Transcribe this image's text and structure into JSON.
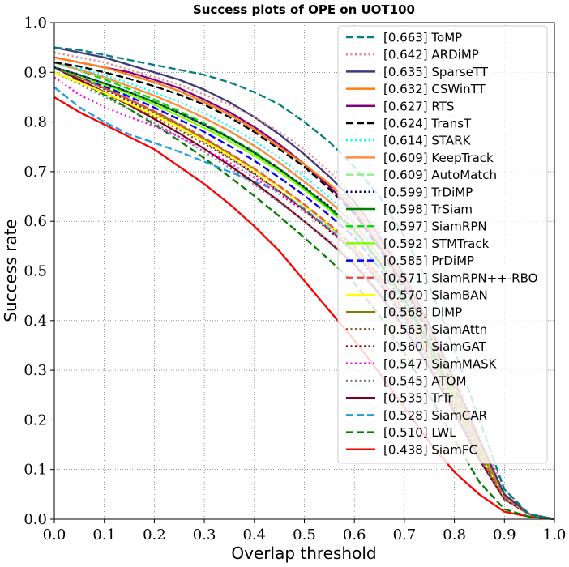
{
  "chart_data": {
    "type": "line",
    "title": "Success plots of OPE on UOT100",
    "xlabel": "Overlap threshold",
    "ylabel": "Success rate",
    "xlim": [
      0.0,
      1.0
    ],
    "ylim": [
      0.0,
      1.0
    ],
    "grid": true,
    "legend_position": "top-right",
    "xticks": [
      "0.0",
      "0.1",
      "0.2",
      "0.3",
      "0.4",
      "0.5",
      "0.6",
      "0.7",
      "0.8",
      "0.9",
      "1.0"
    ],
    "yticks": [
      "0.0",
      "0.1",
      "0.2",
      "0.3",
      "0.4",
      "0.5",
      "0.6",
      "0.7",
      "0.8",
      "0.9",
      "1.0"
    ],
    "x": [
      0.0,
      0.05,
      0.1,
      0.15,
      0.2,
      0.25,
      0.3,
      0.35,
      0.4,
      0.45,
      0.5,
      0.55,
      0.6,
      0.65,
      0.7,
      0.75,
      0.8,
      0.85,
      0.9,
      0.95,
      1.0
    ],
    "series": [
      {
        "name": "[0.663] ToMP",
        "color": "#008080",
        "dash": "dashed",
        "values": [
          0.95,
          0.945,
          0.935,
          0.925,
          0.915,
          0.905,
          0.895,
          0.88,
          0.86,
          0.835,
          0.8,
          0.76,
          0.71,
          0.65,
          0.57,
          0.47,
          0.34,
          0.2,
          0.06,
          0.01,
          0.0
        ]
      },
      {
        "name": "[0.642] ARDiMP",
        "color": "#f08080",
        "dash": "dotted",
        "values": [
          0.94,
          0.93,
          0.92,
          0.905,
          0.89,
          0.875,
          0.855,
          0.835,
          0.81,
          0.78,
          0.745,
          0.7,
          0.65,
          0.58,
          0.5,
          0.4,
          0.29,
          0.17,
          0.06,
          0.01,
          0.0
        ]
      },
      {
        "name": "[0.635] SparseTT",
        "color": "#3b3b7a",
        "dash": "solid",
        "values": [
          0.95,
          0.94,
          0.93,
          0.915,
          0.9,
          0.885,
          0.865,
          0.84,
          0.81,
          0.775,
          0.735,
          0.69,
          0.64,
          0.57,
          0.49,
          0.39,
          0.28,
          0.16,
          0.05,
          0.01,
          0.0
        ]
      },
      {
        "name": "[0.632] CSWinTT",
        "color": "#ff7f0e",
        "dash": "solid",
        "values": [
          0.93,
          0.92,
          0.91,
          0.895,
          0.88,
          0.862,
          0.84,
          0.815,
          0.785,
          0.75,
          0.715,
          0.675,
          0.63,
          0.56,
          0.48,
          0.38,
          0.27,
          0.15,
          0.05,
          0.01,
          0.0
        ]
      },
      {
        "name": "[0.627] RTS",
        "color": "#800080",
        "dash": "solid",
        "values": [
          0.93,
          0.92,
          0.91,
          0.9,
          0.885,
          0.868,
          0.845,
          0.82,
          0.79,
          0.755,
          0.715,
          0.67,
          0.62,
          0.55,
          0.47,
          0.38,
          0.27,
          0.15,
          0.05,
          0.01,
          0.0
        ]
      },
      {
        "name": "[0.624] TransT",
        "color": "#000000",
        "dash": "dashed",
        "values": [
          0.92,
          0.912,
          0.9,
          0.887,
          0.872,
          0.855,
          0.835,
          0.81,
          0.78,
          0.745,
          0.71,
          0.665,
          0.615,
          0.545,
          0.465,
          0.37,
          0.265,
          0.15,
          0.05,
          0.01,
          0.0
        ]
      },
      {
        "name": "[0.614] STARK",
        "color": "#00ffff",
        "dash": "dotted",
        "values": [
          0.92,
          0.908,
          0.894,
          0.878,
          0.86,
          0.84,
          0.818,
          0.792,
          0.762,
          0.728,
          0.69,
          0.648,
          0.6,
          0.535,
          0.46,
          0.365,
          0.26,
          0.15,
          0.05,
          0.01,
          0.0
        ]
      },
      {
        "name": "[0.609] KeepTrack",
        "color": "#ff8c42",
        "dash": "solid",
        "values": [
          0.92,
          0.905,
          0.89,
          0.872,
          0.853,
          0.832,
          0.808,
          0.782,
          0.752,
          0.718,
          0.68,
          0.64,
          0.595,
          0.53,
          0.455,
          0.36,
          0.255,
          0.145,
          0.05,
          0.01,
          0.0
        ]
      },
      {
        "name": "[0.609] AutoMatch",
        "color": "#90ee90",
        "dash": "dashed",
        "values": [
          0.92,
          0.905,
          0.89,
          0.872,
          0.853,
          0.832,
          0.808,
          0.782,
          0.752,
          0.718,
          0.68,
          0.64,
          0.595,
          0.53,
          0.455,
          0.36,
          0.255,
          0.145,
          0.05,
          0.01,
          0.0
        ]
      },
      {
        "name": "[0.599] TrDiMP",
        "color": "#00008b",
        "dash": "dotted",
        "values": [
          0.91,
          0.895,
          0.878,
          0.86,
          0.84,
          0.818,
          0.794,
          0.768,
          0.738,
          0.705,
          0.67,
          0.63,
          0.585,
          0.52,
          0.445,
          0.355,
          0.255,
          0.145,
          0.05,
          0.01,
          0.0
        ]
      },
      {
        "name": "[0.598] TrSiam",
        "color": "#008000",
        "dash": "solid",
        "values": [
          0.91,
          0.895,
          0.878,
          0.86,
          0.84,
          0.818,
          0.794,
          0.768,
          0.738,
          0.705,
          0.668,
          0.628,
          0.583,
          0.518,
          0.443,
          0.353,
          0.253,
          0.143,
          0.05,
          0.01,
          0.0
        ]
      },
      {
        "name": "[0.597] SiamRPN",
        "color": "#00e000",
        "dash": "dashed",
        "values": [
          0.92,
          0.904,
          0.886,
          0.866,
          0.845,
          0.822,
          0.797,
          0.77,
          0.74,
          0.706,
          0.668,
          0.626,
          0.58,
          0.515,
          0.44,
          0.35,
          0.25,
          0.14,
          0.05,
          0.01,
          0.0
        ]
      },
      {
        "name": "[0.592] STMTrack",
        "color": "#7fff00",
        "dash": "solid",
        "values": [
          0.91,
          0.893,
          0.875,
          0.856,
          0.835,
          0.812,
          0.788,
          0.762,
          0.733,
          0.7,
          0.664,
          0.623,
          0.578,
          0.513,
          0.438,
          0.348,
          0.248,
          0.14,
          0.05,
          0.01,
          0.0
        ]
      },
      {
        "name": "[0.585] PrDiMP",
        "color": "#0000ff",
        "dash": "dashed",
        "values": [
          0.91,
          0.892,
          0.872,
          0.851,
          0.829,
          0.805,
          0.78,
          0.752,
          0.722,
          0.688,
          0.652,
          0.612,
          0.568,
          0.505,
          0.432,
          0.344,
          0.246,
          0.14,
          0.05,
          0.01,
          0.0
        ]
      },
      {
        "name": "[0.571] SiamRPN++-RBO",
        "color": "#e8504f",
        "dash": "dashed",
        "values": [
          0.91,
          0.89,
          0.869,
          0.846,
          0.822,
          0.796,
          0.768,
          0.738,
          0.706,
          0.671,
          0.634,
          0.594,
          0.55,
          0.49,
          0.42,
          0.335,
          0.24,
          0.135,
          0.045,
          0.01,
          0.0
        ]
      },
      {
        "name": "[0.570] SiamBAN",
        "color": "#ffff00",
        "dash": "solid",
        "values": [
          0.9,
          0.88,
          0.859,
          0.837,
          0.814,
          0.789,
          0.762,
          0.733,
          0.702,
          0.668,
          0.632,
          0.593,
          0.55,
          0.49,
          0.42,
          0.335,
          0.24,
          0.135,
          0.045,
          0.01,
          0.0
        ]
      },
      {
        "name": "[0.568] DiMP",
        "color": "#808000",
        "dash": "solid",
        "values": [
          0.91,
          0.89,
          0.868,
          0.845,
          0.82,
          0.794,
          0.766,
          0.736,
          0.704,
          0.669,
          0.632,
          0.592,
          0.548,
          0.488,
          0.418,
          0.333,
          0.238,
          0.133,
          0.045,
          0.01,
          0.0
        ]
      },
      {
        "name": "[0.563] SiamAttn",
        "color": "#8b4513",
        "dash": "dotted",
        "values": [
          0.9,
          0.879,
          0.857,
          0.834,
          0.81,
          0.784,
          0.756,
          0.727,
          0.695,
          0.66,
          0.623,
          0.583,
          0.54,
          0.48,
          0.41,
          0.325,
          0.23,
          0.13,
          0.045,
          0.01,
          0.0
        ]
      },
      {
        "name": "[0.560] SiamGAT",
        "color": "#800000",
        "dash": "dotted",
        "values": [
          0.91,
          0.889,
          0.866,
          0.842,
          0.816,
          0.789,
          0.76,
          0.729,
          0.696,
          0.66,
          0.622,
          0.581,
          0.537,
          0.476,
          0.405,
          0.32,
          0.225,
          0.125,
          0.04,
          0.01,
          0.0
        ]
      },
      {
        "name": "[0.547] SiamMASK",
        "color": "#ff00ff",
        "dash": "dotted",
        "values": [
          0.89,
          0.855,
          0.83,
          0.81,
          0.792,
          0.77,
          0.745,
          0.718,
          0.688,
          0.655,
          0.62,
          0.582,
          0.54,
          0.48,
          0.41,
          0.32,
          0.225,
          0.125,
          0.04,
          0.01,
          0.0
        ]
      },
      {
        "name": "[0.545] ATOM",
        "color": "#808080",
        "dash": "dotted",
        "values": [
          0.9,
          0.876,
          0.851,
          0.825,
          0.798,
          0.77,
          0.74,
          0.708,
          0.674,
          0.638,
          0.6,
          0.56,
          0.517,
          0.458,
          0.39,
          0.31,
          0.22,
          0.125,
          0.04,
          0.01,
          0.0
        ]
      },
      {
        "name": "[0.535] TrTr",
        "color": "#800020",
        "dash": "solid",
        "values": [
          0.91,
          0.885,
          0.86,
          0.834,
          0.806,
          0.777,
          0.746,
          0.713,
          0.678,
          0.64,
          0.6,
          0.558,
          0.513,
          0.453,
          0.385,
          0.305,
          0.215,
          0.12,
          0.04,
          0.01,
          0.0
        ]
      },
      {
        "name": "[0.528] SiamCAR",
        "color": "#1ba1e2",
        "dash": "dashed",
        "values": [
          0.87,
          0.83,
          0.8,
          0.775,
          0.758,
          0.74,
          0.72,
          0.7,
          0.68,
          0.66,
          0.625,
          0.585,
          0.54,
          0.475,
          0.4,
          0.31,
          0.215,
          0.12,
          0.04,
          0.01,
          0.0
        ]
      },
      {
        "name": "[0.510] LWL",
        "color": "#008000",
        "dash": "dashed",
        "values": [
          0.91,
          0.883,
          0.855,
          0.826,
          0.795,
          0.762,
          0.727,
          0.69,
          0.651,
          0.61,
          0.567,
          0.522,
          0.475,
          0.41,
          0.335,
          0.25,
          0.16,
          0.075,
          0.02,
          0.005,
          0.0
        ]
      },
      {
        "name": "[0.438] SiamFC",
        "color": "#ff0000",
        "dash": "solid",
        "values": [
          0.85,
          0.82,
          0.795,
          0.77,
          0.745,
          0.71,
          0.675,
          0.635,
          0.59,
          0.54,
          0.48,
          0.42,
          0.36,
          0.295,
          0.225,
          0.155,
          0.095,
          0.05,
          0.015,
          0.005,
          0.0
        ]
      }
    ]
  }
}
